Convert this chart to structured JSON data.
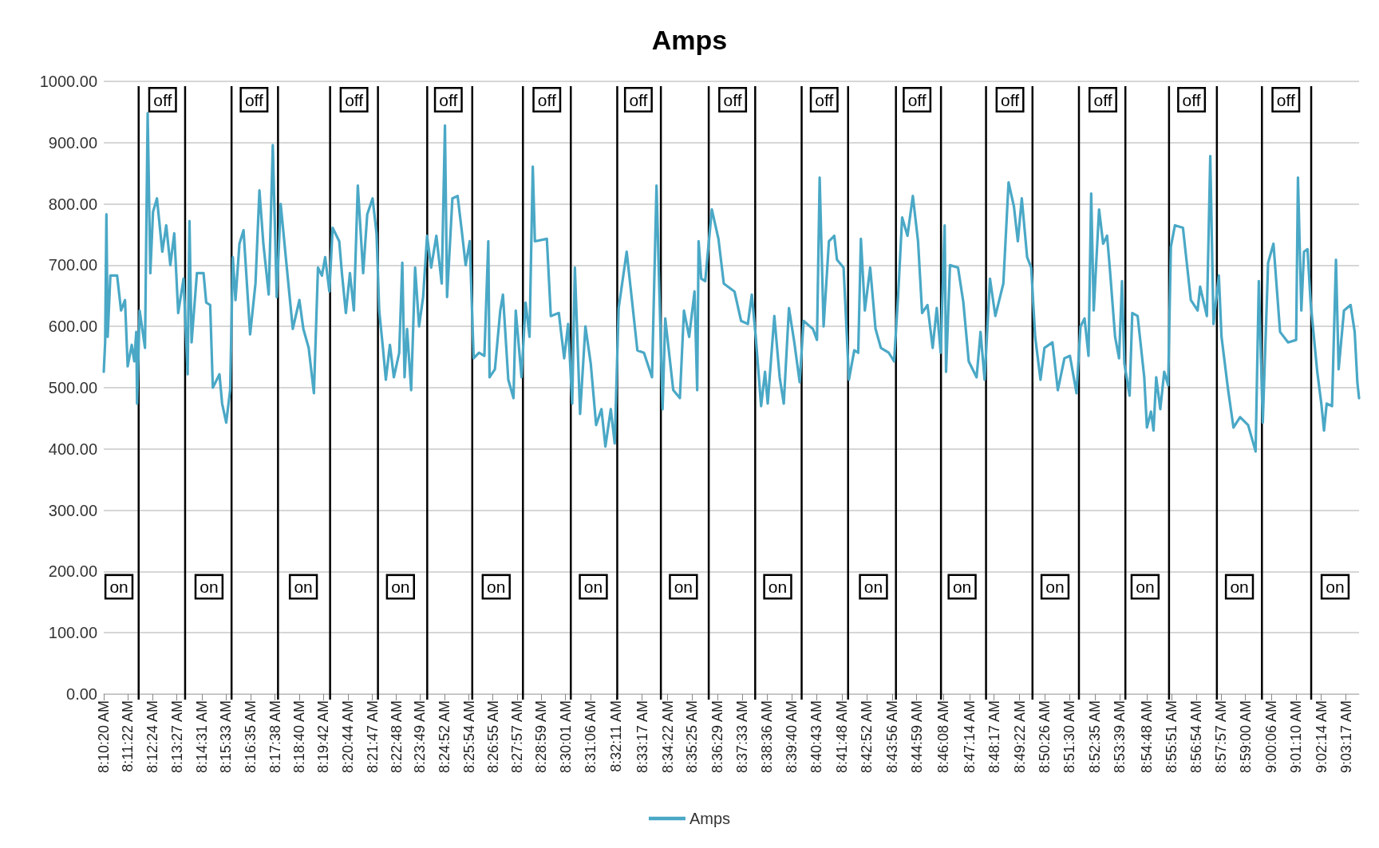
{
  "chart_data": {
    "type": "line",
    "title": "Amps",
    "legend": "bottom",
    "grid": "y",
    "marker": "none",
    "line_style": "solid",
    "xlim": [
      8.1722,
      9.064
    ],
    "ylim": [
      0,
      1000
    ],
    "yticks": [
      {
        "value": 0,
        "label": "0.00"
      },
      {
        "value": 100,
        "label": "100.00"
      },
      {
        "value": 200,
        "label": "200.00"
      },
      {
        "value": 300,
        "label": "300.00"
      },
      {
        "value": 400,
        "label": "400.00"
      },
      {
        "value": 500,
        "label": "500.00"
      },
      {
        "value": 600,
        "label": "600.00"
      },
      {
        "value": 700,
        "label": "700.00"
      },
      {
        "value": 800,
        "label": "800.00"
      },
      {
        "value": 900,
        "label": "900.00"
      },
      {
        "value": 1000,
        "label": "1000.00"
      }
    ],
    "xticks": [
      {
        "value": 8.1722,
        "label": "8:10:20 AM"
      },
      {
        "value": 8.1894,
        "label": "8:11:22 AM"
      },
      {
        "value": 8.2067,
        "label": "8:12:24 AM"
      },
      {
        "value": 8.2242,
        "label": "8:13:27 AM"
      },
      {
        "value": 8.2419,
        "label": "8:14:31 AM"
      },
      {
        "value": 8.2592,
        "label": "8:15:33 AM"
      },
      {
        "value": 8.2764,
        "label": "8:16:35 AM"
      },
      {
        "value": 8.2939,
        "label": "8:17:38 AM"
      },
      {
        "value": 8.3111,
        "label": "8:18:40 AM"
      },
      {
        "value": 8.3283,
        "label": "8:19:42 AM"
      },
      {
        "value": 8.3456,
        "label": "8:20:44 AM"
      },
      {
        "value": 8.3631,
        "label": "8:21:47 AM"
      },
      {
        "value": 8.38,
        "label": "8:22:48 AM"
      },
      {
        "value": 8.3969,
        "label": "8:23:49 AM"
      },
      {
        "value": 8.4144,
        "label": "8:24:52 AM"
      },
      {
        "value": 8.4317,
        "label": "8:25:54 AM"
      },
      {
        "value": 8.4486,
        "label": "8:26:55 AM"
      },
      {
        "value": 8.4658,
        "label": "8:27:57 AM"
      },
      {
        "value": 8.4831,
        "label": "8:28:59 AM"
      },
      {
        "value": 8.5003,
        "label": "8:30:01 AM"
      },
      {
        "value": 8.5183,
        "label": "8:31:06 AM"
      },
      {
        "value": 8.5364,
        "label": "8:32:11 AM"
      },
      {
        "value": 8.5547,
        "label": "8:33:17 AM"
      },
      {
        "value": 8.5728,
        "label": "8:34:22 AM"
      },
      {
        "value": 8.5903,
        "label": "8:35:25 AM"
      },
      {
        "value": 8.6081,
        "label": "8:36:29 AM"
      },
      {
        "value": 8.6258,
        "label": "8:37:33 AM"
      },
      {
        "value": 8.6433,
        "label": "8:38:36 AM"
      },
      {
        "value": 8.6611,
        "label": "8:39:40 AM"
      },
      {
        "value": 8.6786,
        "label": "8:40:43 AM"
      },
      {
        "value": 8.6967,
        "label": "8:41:48 AM"
      },
      {
        "value": 8.7144,
        "label": "8:42:52 AM"
      },
      {
        "value": 8.7322,
        "label": "8:43:56 AM"
      },
      {
        "value": 8.7497,
        "label": "8:44:59 AM"
      },
      {
        "value": 8.7689,
        "label": "8:46:08 AM"
      },
      {
        "value": 8.7872,
        "label": "8:47:14 AM"
      },
      {
        "value": 8.8047,
        "label": "8:48:17 AM"
      },
      {
        "value": 8.8228,
        "label": "8:49:22 AM"
      },
      {
        "value": 8.8406,
        "label": "8:50:26 AM"
      },
      {
        "value": 8.8583,
        "label": "8:51:30 AM"
      },
      {
        "value": 8.8764,
        "label": "8:52:35 AM"
      },
      {
        "value": 8.8942,
        "label": "8:53:39 AM"
      },
      {
        "value": 8.9133,
        "label": "8:54:48 AM"
      },
      {
        "value": 8.9308,
        "label": "8:55:51 AM"
      },
      {
        "value": 8.9483,
        "label": "8:56:54 AM"
      },
      {
        "value": 8.9658,
        "label": "8:57:57 AM"
      },
      {
        "value": 8.9833,
        "label": "8:59:00 AM"
      },
      {
        "value": 9.0017,
        "label": "9:00:06 AM"
      },
      {
        "value": 9.0194,
        "label": "9:01:10 AM"
      },
      {
        "value": 9.0372,
        "label": "9:02:14 AM"
      },
      {
        "value": 9.0547,
        "label": "9:03:17 AM"
      }
    ],
    "ref_lines": [
      {
        "axis": "x",
        "value": 8.197
      },
      {
        "axis": "x",
        "value": 8.23
      },
      {
        "axis": "x",
        "value": 8.263
      },
      {
        "axis": "x",
        "value": 8.296
      },
      {
        "axis": "x",
        "value": 8.333
      },
      {
        "axis": "x",
        "value": 8.367
      },
      {
        "axis": "x",
        "value": 8.402
      },
      {
        "axis": "x",
        "value": 8.434
      },
      {
        "axis": "x",
        "value": 8.47
      },
      {
        "axis": "x",
        "value": 8.504
      },
      {
        "axis": "x",
        "value": 8.537
      },
      {
        "axis": "x",
        "value": 8.568
      },
      {
        "axis": "x",
        "value": 8.602
      },
      {
        "axis": "x",
        "value": 8.635
      },
      {
        "axis": "x",
        "value": 8.668
      },
      {
        "axis": "x",
        "value": 8.701
      },
      {
        "axis": "x",
        "value": 8.735
      },
      {
        "axis": "x",
        "value": 8.767
      },
      {
        "axis": "x",
        "value": 8.799
      },
      {
        "axis": "x",
        "value": 8.832
      },
      {
        "axis": "x",
        "value": 8.865
      },
      {
        "axis": "x",
        "value": 8.898
      },
      {
        "axis": "x",
        "value": 8.929
      },
      {
        "axis": "x",
        "value": 8.963
      },
      {
        "axis": "x",
        "value": 8.995
      },
      {
        "axis": "x",
        "value": 9.03
      }
    ],
    "annotations": [
      {
        "text": "off",
        "x": 8.214,
        "y": 970
      },
      {
        "text": "off",
        "x": 8.279,
        "y": 970
      },
      {
        "text": "off",
        "x": 8.35,
        "y": 970
      },
      {
        "text": "off",
        "x": 8.417,
        "y": 970
      },
      {
        "text": "off",
        "x": 8.487,
        "y": 970
      },
      {
        "text": "off",
        "x": 8.552,
        "y": 970
      },
      {
        "text": "off",
        "x": 8.619,
        "y": 970
      },
      {
        "text": "off",
        "x": 8.684,
        "y": 970
      },
      {
        "text": "off",
        "x": 8.75,
        "y": 970
      },
      {
        "text": "off",
        "x": 8.816,
        "y": 970
      },
      {
        "text": "off",
        "x": 8.882,
        "y": 970
      },
      {
        "text": "off",
        "x": 8.945,
        "y": 970
      },
      {
        "text": "off",
        "x": 9.012,
        "y": 970
      },
      {
        "text": "on",
        "x": 8.183,
        "y": 175
      },
      {
        "text": "on",
        "x": 8.247,
        "y": 175
      },
      {
        "text": "on",
        "x": 8.314,
        "y": 175
      },
      {
        "text": "on",
        "x": 8.383,
        "y": 175
      },
      {
        "text": "on",
        "x": 8.451,
        "y": 175
      },
      {
        "text": "on",
        "x": 8.52,
        "y": 175
      },
      {
        "text": "on",
        "x": 8.584,
        "y": 175
      },
      {
        "text": "on",
        "x": 8.651,
        "y": 175
      },
      {
        "text": "on",
        "x": 8.719,
        "y": 175
      },
      {
        "text": "on",
        "x": 8.782,
        "y": 175
      },
      {
        "text": "on",
        "x": 8.848,
        "y": 175
      },
      {
        "text": "on",
        "x": 8.912,
        "y": 175
      },
      {
        "text": "on",
        "x": 8.979,
        "y": 175
      },
      {
        "text": "on",
        "x": 9.047,
        "y": 175
      }
    ],
    "series": [
      {
        "name": "Amps",
        "color": "#4aa8c6",
        "x": [
          8.1722,
          8.1732,
          8.1741,
          8.175,
          8.1769,
          8.1817,
          8.1845,
          8.1873,
          8.1892,
          8.1921,
          8.1939,
          8.1953,
          8.1959,
          8.1977,
          8.2015,
          8.2034,
          8.2053,
          8.2072,
          8.21,
          8.2138,
          8.2166,
          8.2195,
          8.2223,
          8.2251,
          8.2289,
          8.2318,
          8.2331,
          8.2346,
          8.2384,
          8.2431,
          8.245,
          8.2478,
          8.2497,
          8.2544,
          8.2563,
          8.2592,
          8.262,
          8.2639,
          8.2658,
          8.2686,
          8.2715,
          8.2762,
          8.28,
          8.2828,
          8.2856,
          8.2894,
          8.2923,
          8.2951,
          8.2979,
          8.3017,
          8.3065,
          8.3112,
          8.314,
          8.3178,
          8.3215,
          8.3244,
          8.3272,
          8.3295,
          8.3325,
          8.3348,
          8.3395,
          8.3414,
          8.3442,
          8.3471,
          8.3499,
          8.3527,
          8.3565,
          8.3594,
          8.3632,
          8.366,
          8.3679,
          8.3707,
          8.3726,
          8.3755,
          8.3783,
          8.3821,
          8.3843,
          8.3859,
          8.3877,
          8.3906,
          8.3934,
          8.3962,
          8.3991,
          8.4019,
          8.4048,
          8.4085,
          8.4123,
          8.4146,
          8.4161,
          8.4199,
          8.4236,
          8.4265,
          8.4293,
          8.4322,
          8.435,
          8.4388,
          8.4426,
          8.4454,
          8.4463,
          8.4501,
          8.4539,
          8.4558,
          8.4596,
          8.4633,
          8.4649,
          8.469,
          8.4719,
          8.4747,
          8.477,
          8.4785,
          8.487,
          8.4898,
          8.4955,
          8.4993,
          8.5021,
          8.505,
          8.5069,
          8.5106,
          8.5144,
          8.5182,
          8.522,
          8.5258,
          8.5286,
          8.5324,
          8.5352,
          8.538,
          8.5437,
          8.5466,
          8.5513,
          8.556,
          8.5617,
          8.5649,
          8.5692,
          8.5711,
          8.5768,
          8.5815,
          8.5844,
          8.5881,
          8.5919,
          8.5938,
          8.5948,
          8.5967,
          8.5995,
          8.6042,
          8.6089,
          8.6127,
          8.6203,
          8.625,
          8.6298,
          8.6326,
          8.6354,
          8.6392,
          8.642,
          8.6439,
          8.6486,
          8.6524,
          8.6553,
          8.659,
          8.6628,
          8.6666,
          8.6694,
          8.676,
          8.6789,
          8.6808,
          8.6836,
          8.6874,
          8.6912,
          8.6931,
          8.6978,
          8.7016,
          8.7054,
          8.7082,
          8.7101,
          8.7129,
          8.7167,
          8.7205,
          8.7243,
          8.7299,
          8.7337,
          8.7366,
          8.7394,
          8.7432,
          8.747,
          8.7507,
          8.7536,
          8.7574,
          8.7611,
          8.764,
          8.7668,
          8.7696,
          8.7706,
          8.7734,
          8.7791,
          8.7829,
          8.7867,
          8.7923,
          8.7951,
          8.798,
          8.8018,
          8.8056,
          8.8113,
          8.815,
          8.8188,
          8.8216,
          8.8244,
          8.8282,
          8.8311,
          8.8339,
          8.8377,
          8.8405,
          8.8462,
          8.85,
          8.8547,
          8.8586,
          8.8633,
          8.8661,
          8.869,
          8.8718,
          8.8737,
          8.8755,
          8.8793,
          8.8822,
          8.885,
          8.8869,
          8.8907,
          8.8935,
          8.8956,
          8.8973,
          8.901,
          8.9029,
          8.9067,
          8.9114,
          8.9133,
          8.9162,
          8.918,
          8.9199,
          8.9228,
          8.9256,
          8.9284,
          8.9303,
          8.9332,
          8.9389,
          8.9445,
          8.9493,
          8.9511,
          8.9559,
          8.9583,
          8.9606,
          8.9644,
          8.9663,
          8.971,
          8.9748,
          8.9795,
          8.9852,
          8.9905,
          8.9928,
          8.9956,
          8.9994,
          9.0032,
          9.0079,
          9.0136,
          9.0193,
          9.0206,
          9.023,
          9.0249,
          9.0274,
          9.0296,
          9.0343,
          9.0372,
          9.0391,
          9.041,
          9.0448,
          9.0476,
          9.0495,
          9.0533,
          9.058,
          9.0609,
          9.0628,
          9.064
        ],
        "values": [
          526,
          574,
          783,
          583,
          683,
          683,
          626,
          643,
          535,
          570,
          543,
          591,
          474,
          626,
          565,
          948,
          687,
          787,
          809,
          722,
          765,
          700,
          752,
          622,
          678,
          522,
          772,
          574,
          687,
          687,
          639,
          635,
          500,
          522,
          474,
          443,
          496,
          713,
          643,
          735,
          757,
          587,
          670,
          822,
          735,
          652,
          896,
          648,
          800,
          709,
          596,
          643,
          596,
          565,
          491,
          696,
          683,
          713,
          657,
          761,
          739,
          687,
          622,
          687,
          626,
          830,
          687,
          783,
          809,
          752,
          626,
          561,
          513,
          570,
          517,
          557,
          704,
          517,
          596,
          496,
          696,
          600,
          648,
          748,
          696,
          748,
          670,
          928,
          648,
          809,
          813,
          757,
          700,
          739,
          548,
          557,
          552,
          739,
          517,
          530,
          626,
          652,
          513,
          483,
          626,
          517,
          639,
          583,
          861,
          739,
          743,
          617,
          622,
          548,
          604,
          474,
          696,
          457,
          600,
          539,
          439,
          465,
          404,
          465,
          409,
          630,
          722,
          661,
          561,
          557,
          517,
          830,
          465,
          613,
          496,
          483,
          626,
          583,
          657,
          496,
          739,
          678,
          674,
          791,
          743,
          670,
          657,
          609,
          604,
          652,
          583,
          470,
          526,
          474,
          617,
          517,
          474,
          630,
          574,
          509,
          609,
          596,
          578,
          843,
          600,
          739,
          748,
          709,
          696,
          513,
          561,
          557,
          743,
          626,
          696,
          596,
          565,
          557,
          543,
          652,
          778,
          748,
          813,
          739,
          622,
          635,
          565,
          630,
          557,
          765,
          526,
          700,
          696,
          639,
          543,
          517,
          591,
          513,
          678,
          617,
          670,
          835,
          796,
          739,
          809,
          713,
          696,
          583,
          513,
          565,
          574,
          496,
          548,
          552,
          491,
          600,
          613,
          552,
          817,
          626,
          791,
          735,
          748,
          696,
          583,
          548,
          674,
          539,
          487,
          622,
          617,
          517,
          435,
          461,
          430,
          517,
          465,
          526,
          504,
          730,
          765,
          761,
          643,
          626,
          665,
          617,
          878,
          604,
          683,
          583,
          496,
          435,
          452,
          439,
          396,
          674,
          443,
          704,
          735,
          591,
          574,
          578,
          843,
          626,
          722,
          726,
          639,
          526,
          474,
          430,
          474,
          470,
          709,
          530,
          626,
          635,
          591,
          509,
          483
        ]
      }
    ]
  }
}
